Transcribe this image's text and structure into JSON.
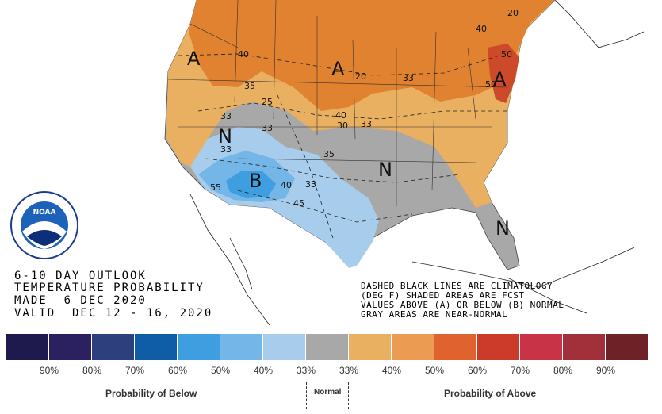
{
  "map": {
    "region_letters": [
      {
        "id": "a-west",
        "label": "A"
      },
      {
        "id": "a-north",
        "label": "A"
      },
      {
        "id": "a-east",
        "label": "A"
      },
      {
        "id": "n-west",
        "label": "N"
      },
      {
        "id": "n-central",
        "label": "N"
      },
      {
        "id": "n-florida",
        "label": "N"
      },
      {
        "id": "b-southwest",
        "label": "B"
      }
    ],
    "contour_labels": [
      "40",
      "33",
      "20",
      "40",
      "33",
      "33",
      "50",
      "50",
      "33",
      "35",
      "55",
      "40",
      "33",
      "45",
      "33",
      "25",
      "20",
      "40",
      "30",
      "35"
    ]
  },
  "outlook_title": {
    "line1": "6-10 DAY OUTLOOK",
    "line2": "TEMPERATURE PROBABILITY",
    "line3": "MADE  6 DEC 2020",
    "line4": "VALID  DEC 12 - 16, 2020"
  },
  "notes": {
    "line1": "DASHED BLACK LINES ARE CLIMATOLOGY",
    "line2": "(DEG F) SHADED AREAS ARE FCST",
    "line3": "VALUES ABOVE (A) OR BELOW (B) NORMAL",
    "line4": "GRAY AREAS ARE NEAR-NORMAL"
  },
  "legend": {
    "colors": [
      "#1f1a4d",
      "#2b2160",
      "#2d3f7c",
      "#0f5da6",
      "#3e9ee0",
      "#74b6e8",
      "#a8cdec",
      "#a8a8a8",
      "#eab061",
      "#ec9b52",
      "#e0622e",
      "#cc3a2a",
      "#c83347",
      "#a2303b",
      "#6e2126"
    ],
    "below_ticks": [
      "90%",
      "80%",
      "70%",
      "60%",
      "50%",
      "40%",
      "33%"
    ],
    "above_ticks": [
      "33%",
      "40%",
      "50%",
      "60%",
      "70%",
      "80%",
      "90%"
    ],
    "below_caption": "Probability of Below",
    "normal_caption": "Normal",
    "above_caption": "Probability of Above"
  },
  "logo": {
    "text": "NOAA",
    "ring_text": "NATIONAL OCEANIC AND ATMOSPHERIC ADMINISTRATION · U.S. DEPARTMENT OF COMMERCE"
  }
}
